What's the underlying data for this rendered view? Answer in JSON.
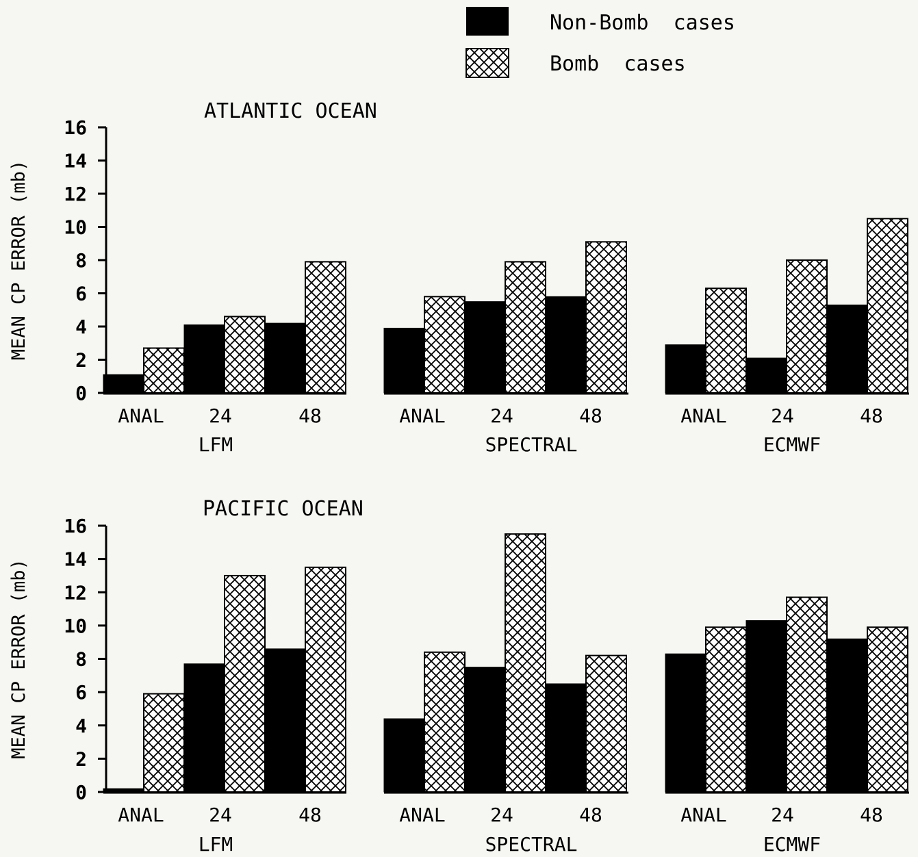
{
  "legend": [
    {
      "label": "Non-Bomb  cases",
      "style": "solid"
    },
    {
      "label": "Bomb  cases",
      "style": "crosshatch"
    }
  ],
  "chart_data": [
    {
      "type": "bar",
      "title": "ATLANTIC OCEAN",
      "ylabel": "MEAN CP ERROR  (mb)",
      "ylim": [
        0,
        16
      ],
      "yticks": [
        "0",
        "2",
        "4",
        "6",
        "8",
        "10",
        "12",
        "14",
        "16"
      ],
      "groups": [
        "LFM",
        "SPECTRAL",
        "ECMWF"
      ],
      "categories": [
        "ANAL",
        "24",
        "48"
      ],
      "series": [
        {
          "name": "Non-Bomb  cases",
          "values": [
            [
              1.1,
              4.1,
              4.2
            ],
            [
              3.9,
              5.5,
              5.8
            ],
            [
              2.9,
              2.1,
              5.3
            ]
          ]
        },
        {
          "name": "Bomb  cases",
          "values": [
            [
              2.7,
              4.6,
              7.9
            ],
            [
              5.8,
              7.9,
              9.1
            ],
            [
              6.3,
              8.0,
              10.5
            ]
          ]
        }
      ]
    },
    {
      "type": "bar",
      "title": "PACIFIC OCEAN",
      "ylabel": "MEAN CP ERROR  (mb)",
      "ylim": [
        0,
        16
      ],
      "yticks": [
        "0",
        "2",
        "4",
        "6",
        "8",
        "10",
        "12",
        "14",
        "16"
      ],
      "groups": [
        "LFM",
        "SPECTRAL",
        "ECMWF"
      ],
      "categories": [
        "ANAL",
        "24",
        "48"
      ],
      "series": [
        {
          "name": "Non-Bomb  cases",
          "values": [
            [
              0.2,
              7.7,
              8.6
            ],
            [
              4.4,
              7.5,
              6.5
            ],
            [
              8.3,
              10.3,
              9.2
            ]
          ]
        },
        {
          "name": "Bomb  cases",
          "values": [
            [
              5.9,
              13.0,
              13.5
            ],
            [
              8.4,
              15.5,
              8.2
            ],
            [
              9.9,
              11.7,
              9.9
            ]
          ]
        }
      ]
    }
  ]
}
